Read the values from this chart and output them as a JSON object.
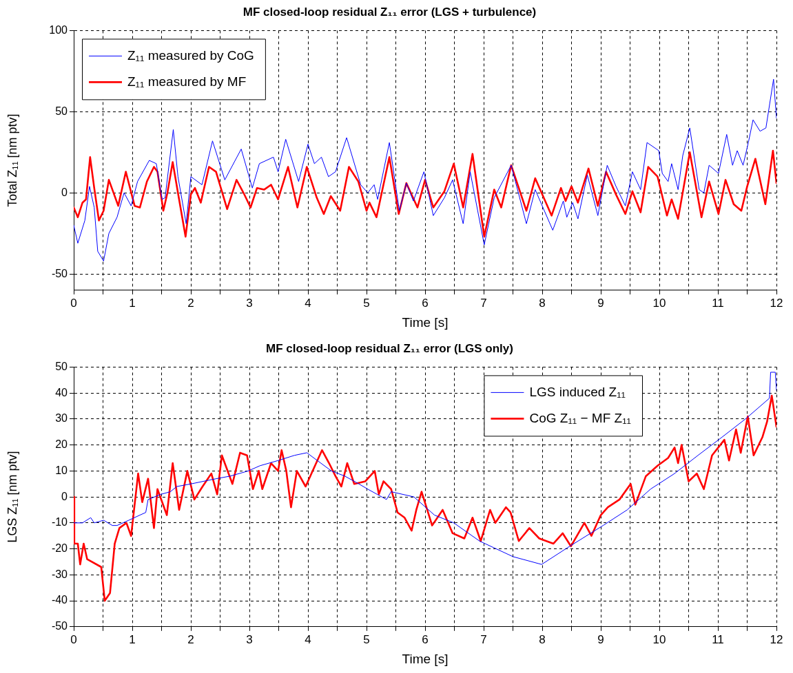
{
  "chart_data": [
    {
      "type": "line",
      "title": "MF closed-loop residual Z₁₁ error (LGS + turbulence)",
      "xlabel": "Time [s]",
      "ylabel": "Total Z₁₁ [nm ptv]",
      "xlim": [
        0,
        12
      ],
      "ylim": [
        -60,
        100
      ],
      "xticks": [
        0,
        {
          "value": 0.5,
          "label": null
        },
        1,
        {
          "value": 1.5,
          "label": null
        },
        2,
        {
          "value": 2.5,
          "label": null
        },
        3,
        {
          "value": 3.5,
          "label": null
        },
        4,
        {
          "value": 4.5,
          "label": null
        },
        5,
        {
          "value": 5.5,
          "label": null
        },
        6,
        {
          "value": 6.5,
          "label": null
        },
        7,
        {
          "value": 7.5,
          "label": null
        },
        8,
        {
          "value": 8.5,
          "label": null
        },
        9,
        {
          "value": 9.5,
          "label": null
        },
        10,
        {
          "value": 10.5,
          "label": null
        },
        11,
        {
          "value": 11.5,
          "label": null
        },
        12
      ],
      "yticks": [
        -50,
        0,
        50,
        100
      ],
      "grid": true,
      "legend": "top left",
      "marker": "none",
      "series": [
        {
          "name": "Z₁₁ measured by CoG",
          "color": "#0000ff",
          "x": [
            0,
            0.07,
            0.19,
            0.27,
            0.35,
            0.41,
            0.51,
            0.6,
            0.74,
            0.86,
            0.98,
            1.09,
            1.29,
            1.41,
            1.51,
            1.56,
            1.7,
            1.78,
            1.92,
            2.0,
            2.19,
            2.37,
            2.58,
            2.86,
            3.05,
            3.17,
            3.41,
            3.49,
            3.62,
            3.84,
            4.0,
            4.11,
            4.23,
            4.35,
            4.47,
            4.66,
            4.9,
            5.02,
            5.13,
            5.19,
            5.39,
            5.56,
            5.68,
            5.8,
            5.98,
            6.14,
            6.33,
            6.47,
            6.65,
            6.77,
            7.01,
            7.18,
            7.47,
            7.73,
            7.88,
            8.18,
            8.36,
            8.42,
            8.52,
            8.61,
            8.77,
            8.95,
            9.11,
            9.26,
            9.42,
            9.54,
            9.68,
            9.79,
            9.99,
            10.05,
            10.15,
            10.21,
            10.32,
            10.4,
            10.52,
            10.68,
            10.76,
            10.85,
            11.01,
            11.15,
            11.25,
            11.33,
            11.43,
            11.52,
            11.6,
            11.72,
            11.82,
            11.95,
            12
          ],
          "values": [
            -20,
            -31,
            -17,
            4,
            -9,
            -36,
            -42,
            -25,
            -15,
            0,
            -8,
            7,
            20,
            18,
            -4,
            -3,
            39,
            10,
            -19,
            10,
            5,
            32,
            8,
            27,
            3,
            18,
            22,
            13,
            33,
            7,
            30,
            18,
            22,
            10,
            13,
            34,
            5,
            0,
            5,
            -4,
            31,
            -11,
            6,
            -5,
            13,
            -14,
            -3,
            8,
            -19,
            13,
            -32,
            -3,
            17,
            -19,
            2,
            -23,
            -5,
            -15,
            -6,
            -16,
            11,
            -14,
            17,
            4,
            -8,
            13,
            2,
            31,
            26,
            12,
            7,
            18,
            2,
            23,
            40,
            2,
            0,
            17,
            12,
            36,
            17,
            26,
            17,
            31,
            45,
            38,
            40,
            70,
            46
          ]
        },
        {
          "name": "Z₁₁ measured by MF",
          "color": "#ff0000",
          "x": [
            0,
            0.07,
            0.15,
            0.21,
            0.28,
            0.35,
            0.43,
            0.51,
            0.6,
            0.76,
            0.89,
            1.04,
            1.13,
            1.25,
            1.37,
            1.43,
            1.53,
            1.6,
            1.69,
            1.78,
            1.91,
            2.0,
            2.07,
            2.17,
            2.31,
            2.43,
            2.62,
            2.78,
            2.9,
            3.02,
            3.13,
            3.25,
            3.37,
            3.49,
            3.66,
            3.82,
            3.98,
            4.15,
            4.27,
            4.39,
            4.55,
            4.7,
            4.86,
            5.0,
            5.05,
            5.17,
            5.39,
            5.55,
            5.68,
            5.87,
            6.0,
            6.14,
            6.33,
            6.49,
            6.65,
            6.81,
            7.01,
            7.18,
            7.3,
            7.47,
            7.73,
            7.88,
            8.16,
            8.32,
            8.4,
            8.5,
            8.61,
            8.79,
            8.95,
            9.09,
            9.26,
            9.42,
            9.54,
            9.68,
            9.81,
            9.97,
            10.13,
            10.21,
            10.32,
            10.52,
            10.72,
            10.85,
            11.01,
            11.13,
            11.27,
            11.4,
            11.5,
            11.64,
            11.81,
            11.94,
            12
          ],
          "values": [
            -9,
            -15,
            -6,
            -4,
            22,
            3,
            -17,
            -11,
            8,
            -8,
            13,
            -8,
            -9,
            7,
            16,
            13,
            -11,
            0,
            19,
            0,
            -27,
            -1,
            3,
            -6,
            16,
            13,
            -10,
            8,
            0,
            -9,
            3,
            2,
            5,
            -4,
            16,
            -9,
            16,
            -3,
            -13,
            -2,
            -11,
            16,
            7,
            -11,
            -6,
            -15,
            22,
            -13,
            6,
            -9,
            8,
            -9,
            1,
            18,
            -9,
            24,
            -27,
            2,
            -9,
            17,
            -11,
            9,
            -14,
            3,
            -5,
            4,
            -6,
            15,
            -8,
            13,
            -1,
            -13,
            1,
            -12,
            16,
            10,
            -14,
            -4,
            -16,
            25,
            -15,
            7,
            -13,
            8,
            -7,
            -11,
            4,
            21,
            -7,
            26,
            6
          ]
        }
      ]
    },
    {
      "type": "line",
      "title": "MF closed-loop residual Z₁₁ error (LGS only)",
      "xlabel": "Time [s]",
      "ylabel": "LGS Z₁₁ [nm ptv]",
      "xlim": [
        0,
        12
      ],
      "ylim": [
        -50,
        50
      ],
      "xticks": [
        0,
        {
          "value": 0.5,
          "label": null
        },
        1,
        {
          "value": 1.5,
          "label": null
        },
        2,
        {
          "value": 2.5,
          "label": null
        },
        3,
        {
          "value": 3.5,
          "label": null
        },
        4,
        {
          "value": 4.5,
          "label": null
        },
        5,
        {
          "value": 5.5,
          "label": null
        },
        6,
        {
          "value": 6.5,
          "label": null
        },
        7,
        {
          "value": 7.5,
          "label": null
        },
        8,
        {
          "value": 8.5,
          "label": null
        },
        9,
        {
          "value": 9.5,
          "label": null
        },
        10,
        {
          "value": 10.5,
          "label": null
        },
        11,
        {
          "value": 11.5,
          "label": null
        },
        12
      ],
      "yticks": [
        -50,
        -40,
        -30,
        -20,
        -10,
        0,
        10,
        20,
        30,
        40,
        50
      ],
      "grid": true,
      "legend": "top right",
      "marker": "none",
      "series": [
        {
          "name": "LGS induced Z₁₁",
          "color": "#0000ff",
          "x": [
            0,
            0.15,
            0.29,
            0.35,
            0.51,
            0.66,
            0.74,
            0.94,
            1.13,
            1.23,
            1.27,
            1.49,
            1.65,
            1.76,
            2.0,
            2.43,
            2.67,
            2.98,
            3.18,
            3.49,
            3.77,
            3.98,
            4.16,
            4.4,
            4.63,
            4.87,
            5.02,
            5.18,
            5.34,
            5.42,
            5.81,
            6.16,
            6.49,
            6.93,
            7.5,
            7.99,
            8.47,
            9.04,
            9.45,
            9.85,
            10.26,
            10.66,
            11.07,
            11.47,
            11.88,
            11.9,
            11.98,
            12
          ],
          "values": [
            -10,
            -10,
            -8,
            -10,
            -9,
            -11,
            -11,
            -9,
            -7,
            -6,
            -1,
            1,
            2,
            4,
            5,
            7,
            8,
            10,
            12,
            14,
            16,
            17,
            14,
            10,
            8,
            5,
            3,
            1,
            -1,
            2,
            0,
            -7,
            -10,
            -17,
            -23,
            -26,
            -19,
            -11,
            -5,
            3,
            9,
            16,
            23,
            30,
            38,
            48,
            48,
            41
          ]
        },
        {
          "name": "CoG Z₁₁ − MF Z₁₁",
          "color": "#ff0000",
          "x": [
            0,
            0.01,
            0.07,
            0.11,
            0.17,
            0.23,
            0.47,
            0.53,
            0.62,
            0.7,
            0.78,
            0.9,
            0.98,
            1.1,
            1.17,
            1.27,
            1.37,
            1.43,
            1.59,
            1.69,
            1.8,
            1.94,
            2.06,
            2.2,
            2.35,
            2.45,
            2.53,
            2.71,
            2.84,
            2.96,
            3.06,
            3.16,
            3.22,
            3.37,
            3.49,
            3.55,
            3.63,
            3.71,
            3.81,
            3.96,
            4.12,
            4.24,
            4.36,
            4.47,
            4.57,
            4.67,
            4.79,
            4.98,
            5.14,
            5.21,
            5.29,
            5.42,
            5.53,
            5.65,
            5.77,
            5.85,
            5.94,
            6.12,
            6.3,
            6.47,
            6.67,
            6.81,
            6.95,
            7.11,
            7.2,
            7.38,
            7.46,
            7.6,
            7.78,
            7.95,
            8.19,
            8.35,
            8.49,
            8.72,
            8.84,
            9.0,
            9.12,
            9.32,
            9.51,
            9.59,
            9.77,
            9.97,
            10.15,
            10.26,
            10.32,
            10.38,
            10.5,
            10.64,
            10.76,
            10.9,
            11.11,
            11.19,
            11.31,
            11.39,
            11.51,
            11.61,
            11.76,
            11.84,
            11.92,
            12
          ],
          "values": [
            0,
            -18,
            -18,
            -26,
            -18,
            -24,
            -27,
            -40,
            -37,
            -18,
            -12,
            -10,
            -15,
            9,
            -2,
            7,
            -12,
            3,
            -7,
            13,
            -5,
            10,
            -1,
            4,
            9,
            1,
            16,
            5,
            17,
            16,
            3,
            10,
            3,
            13,
            10,
            18,
            10,
            -4,
            10,
            4,
            12,
            18,
            13,
            8,
            4,
            13,
            5,
            6,
            10,
            1,
            6,
            3,
            -6,
            -8,
            -13,
            -5,
            2,
            -11,
            -5,
            -14,
            -16,
            -8,
            -17,
            -5,
            -10,
            -4,
            -6,
            -17,
            -12,
            -16,
            -18,
            -14,
            -19,
            -10,
            -15,
            -7,
            -4,
            -1,
            5,
            -3,
            8,
            12,
            15,
            19,
            13,
            20,
            6,
            9,
            3,
            16,
            22,
            14,
            26,
            17,
            31,
            16,
            23,
            29,
            39,
            27
          ]
        }
      ]
    }
  ]
}
